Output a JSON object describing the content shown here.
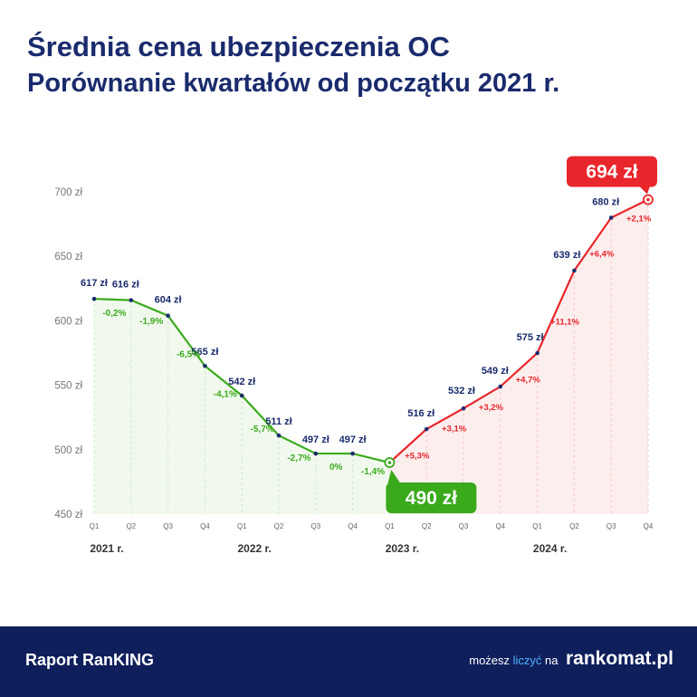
{
  "title": "Średnia cena ubezpieczenia OC",
  "subtitle": "Porównanie kwartałów od początku 2021 r.",
  "footer": {
    "report_label": "Raport RanKING",
    "tagline_prefix": "możesz ",
    "tagline_accent": "liczyć",
    "tagline_suffix": " na",
    "logo_text": "rankomat.pl"
  },
  "chart_data": {
    "type": "line",
    "x": [
      "Q1",
      "Q2",
      "Q3",
      "Q4",
      "Q1",
      "Q2",
      "Q3",
      "Q4",
      "Q1",
      "Q2",
      "Q3",
      "Q4",
      "Q1",
      "Q2",
      "Q3",
      "Q4"
    ],
    "years": [
      "2021 r.",
      "2022 r.",
      "2023 r.",
      "2024 r."
    ],
    "y_ticks": [
      "700 zł",
      "650 zł",
      "600 zł",
      "550 zł",
      "500 zł",
      "450 zł"
    ],
    "y_tick_values": [
      700,
      650,
      600,
      550,
      500,
      450
    ],
    "ylim": [
      450,
      700
    ],
    "values": [
      617,
      616,
      604,
      565,
      542,
      511,
      497,
      497,
      490,
      516,
      532,
      549,
      575,
      639,
      680,
      694
    ],
    "value_labels": [
      "617 zł",
      "616 zł",
      "604 zł",
      "565 zł",
      "542 zł",
      "511 zł",
      "497 zł",
      "497 zł",
      "490 zł",
      "516 zł",
      "532 zł",
      "549 zł",
      "575 zł",
      "639 zł",
      "680 zł",
      "694 zł"
    ],
    "changes": [
      "",
      "-0,2%",
      "-1,9%",
      "-6,5%",
      "-4,1%",
      "-5,7%",
      "-2,7%",
      "0%",
      "-1,4%",
      "+5,3%",
      "+3,1%",
      "+3,2%",
      "+4,7%",
      "+11,1%",
      "+6,4%",
      "+2,1%"
    ],
    "colors": {
      "decline": "#3aaa1c",
      "rise": "#e8262b",
      "label": "#1a2b6d",
      "axis": "#666666"
    },
    "grid": false,
    "min_callout": "490 zł",
    "max_callout": "694 zł"
  }
}
